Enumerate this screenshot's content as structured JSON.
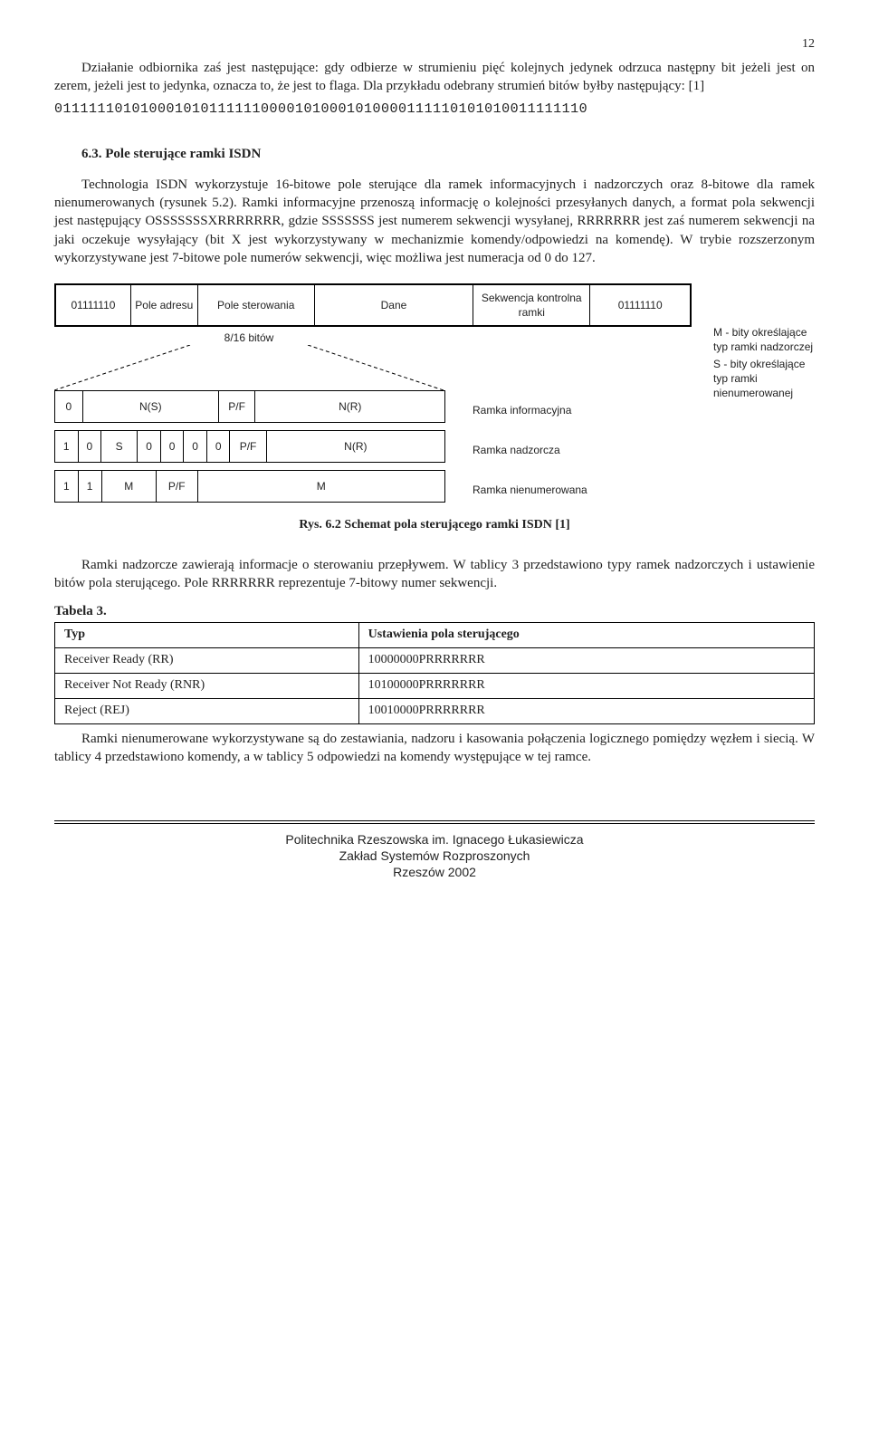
{
  "page_number": "12",
  "para1": "Działanie odbiornika zaś jest następujące: gdy odbierze w strumieniu pięć kolejnych jedynek odrzuca następny bit jeżeli jest on zerem, jeżeli jest to jedynka, oznacza to, że jest to flaga. Dla przykładu odebrany strumień bitów byłby następujący: [1]",
  "bitstream": "01111110101000101011111100001010001010000111110101010011111110",
  "section_heading": "6.3. Pole sterujące ramki ISDN",
  "para2": "Technologia ISDN wykorzystuje 16-bitowe pole sterujące dla ramek informacyjnych i nadzorczych oraz 8-bitowe dla ramek nienumerowanych (rysunek 5.2). Ramki informacyjne przenoszą informację o kolejności przesyłanych danych, a format pola sekwencji jest następujący OSSSSSSSXRRRRRRR, gdzie SSSSSSS jest numerem sekwencji wysyłanej, RRRRRRR jest zaś numerem sekwencji na jaki oczekuje wysyłający (bit X jest wykorzystywany w mechanizmie komendy/odpowiedzi na komendę). W trybie rozszerzonym wykorzystywane jest 7-bitowe pole numerów sekwencji, więc możliwa jest numeracja od 0 do 127.",
  "figure": {
    "top_row": {
      "cells": [
        "01111110",
        "Pole adresu",
        "Pole sterowania",
        "Dane",
        "Sekwencja kontrolna ramki",
        "01111110"
      ],
      "widths": [
        80,
        70,
        130,
        180,
        130,
        110
      ]
    },
    "below_bits_label": "8/16 bitów",
    "side_notes": [
      "M - bity określające typ ramki nadzorczej",
      "S - bity określające typ ramki nienumerowanej"
    ],
    "sub_rows": [
      {
        "cells": [
          "0",
          "N(S)",
          "P/F",
          "N(R)"
        ],
        "widths": [
          30,
          150,
          40,
          210
        ],
        "label": "Ramka informacyjna"
      },
      {
        "cells": [
          "1",
          "0",
          "S",
          "0",
          "0",
          "0",
          "0",
          "P/F",
          "N(R)"
        ],
        "widths": [
          25,
          25,
          40,
          25,
          25,
          25,
          25,
          40,
          200
        ],
        "label": "Ramka nadzorcza"
      },
      {
        "cells": [
          "1",
          "1",
          "M",
          "P/F",
          "M"
        ],
        "widths": [
          25,
          25,
          60,
          45,
          275
        ],
        "label": "Ramka nienumerowana"
      }
    ],
    "dash_color": "#000"
  },
  "caption": "Rys. 6.2 Schemat pola sterującego ramki ISDN [1]",
  "para3": "Ramki nadzorcze zawierają informacje o sterowaniu przepływem. W tablicy 3 przedstawiono typy ramek nadzorczych i ustawienie bitów pola sterującego. Pole RRRRRRR reprezentuje 7-bitowy numer sekwencji.",
  "table3": {
    "label": "Tabela 3.",
    "columns": [
      "Typ",
      "Ustawienia pola sterującego"
    ],
    "rows": [
      [
        "Receiver Ready (RR)",
        "10000000PRRRRRRR"
      ],
      [
        "Receiver Not Ready (RNR)",
        "10100000PRRRRRRR"
      ],
      [
        "Reject (REJ)",
        "10010000PRRRRRRR"
      ]
    ],
    "col_widths": [
      "40%",
      "60%"
    ]
  },
  "para4": "Ramki nienumerowane wykorzystywane są do zestawiania, nadzoru i kasowania połączenia logicznego pomiędzy węzłem i siecią. W tablicy 4 przedstawiono komendy, a w tablicy 5 odpowiedzi na komendy występujące w tej ramce.",
  "footer": {
    "line1": "Politechnika Rzeszowska im. Ignacego Łukasiewicza",
    "line2": "Zakład Systemów Rozproszonych",
    "line3": "Rzeszów 2002"
  }
}
